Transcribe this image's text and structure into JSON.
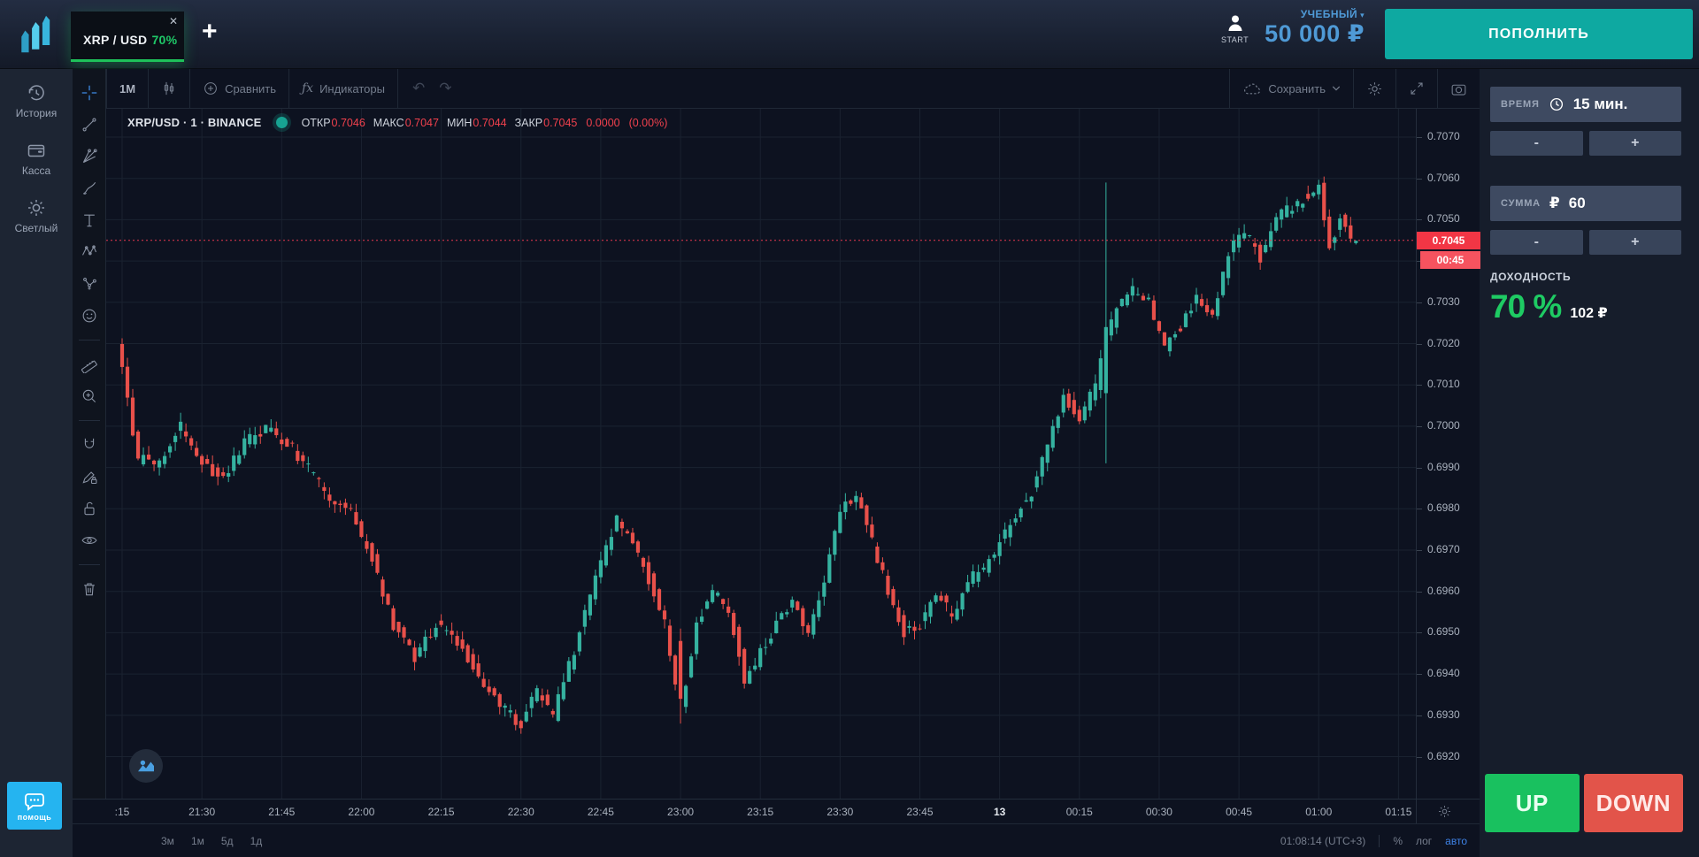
{
  "tab": {
    "symbol": "XRP / USD",
    "payout": "70%",
    "close_glyph": "✕",
    "add_glyph": "+"
  },
  "account": {
    "start_label": "START",
    "type": "УЧЕБНЫЙ",
    "caret": "▾",
    "balance": "50 000 ₽",
    "deposit_label": "ПОПОЛНИТЬ"
  },
  "sidebar": {
    "items": [
      {
        "label": "История"
      },
      {
        "label": "Касса"
      },
      {
        "label": "Светлый"
      }
    ],
    "help_label": "помощь"
  },
  "chart_toolbar": {
    "interval": "1М",
    "compare": "Сравнить",
    "indicators": "Индикаторы",
    "indicators_glyph": "ƒx",
    "undo_glyph": "↶",
    "redo_glyph": "↷",
    "save": "Сохранить"
  },
  "legend": {
    "title": "XRP/USD · 1 · BINANCE",
    "open_label": "ОТКР",
    "open": "0.7046",
    "high_label": "МАКС",
    "high": "0.7047",
    "low_label": "МИН",
    "low": "0.7044",
    "close_label": "ЗАКР",
    "close": "0.7045",
    "change": "0.0000",
    "change_pct": "(0.00%)"
  },
  "trade_panel": {
    "time_label": "ВРЕМЯ",
    "time_value": "15 мин.",
    "amount_label": "СУММА",
    "amount_currency": "₽",
    "amount_value": "60",
    "minus_glyph": "-",
    "plus_glyph": "+",
    "payout_label": "ДОХОДНОСТЬ",
    "payout_pct": "70 %",
    "payout_amount": "102 ₽",
    "up_label": "UP",
    "down_label": "DOWN"
  },
  "bottom_bar": {
    "ranges": [
      {
        "label": "3м"
      },
      {
        "label": "1м"
      },
      {
        "label": "5д"
      },
      {
        "label": "1д"
      }
    ],
    "clock": "01:08:14 (UTC+3)",
    "percent": "%",
    "log": "лог",
    "auto": "авто"
  },
  "price_scale": {
    "current_price_label": "0.7045",
    "countdown": "00:45"
  },
  "chart_data": {
    "type": "candlestick",
    "symbol": "XRP/USD",
    "exchange": "BINANCE",
    "interval_minutes": 1,
    "session_start": "21:15",
    "total_minutes": 233,
    "ohlc_last": {
      "open": 0.7046,
      "high": 0.7047,
      "low": 0.7044,
      "close": 0.7045,
      "change": 0.0,
      "change_pct": 0.0
    },
    "current_price": 0.7045,
    "countdown": "00:45",
    "y_axis": {
      "ticks": [
        0.707,
        0.706,
        0.705,
        0.704,
        0.703,
        0.702,
        0.701,
        0.7,
        0.699,
        0.698,
        0.697,
        0.696,
        0.695,
        0.694,
        0.693,
        0.692
      ],
      "range": [
        0.6915,
        0.7077
      ]
    },
    "x_axis": {
      "ticks": [
        {
          "label": ":15",
          "minute": 0
        },
        {
          "label": "21:30",
          "minute": 15
        },
        {
          "label": "21:45",
          "minute": 30
        },
        {
          "label": "22:00",
          "minute": 45
        },
        {
          "label": "22:15",
          "minute": 60
        },
        {
          "label": "22:30",
          "minute": 75
        },
        {
          "label": "22:45",
          "minute": 90
        },
        {
          "label": "23:00",
          "minute": 105
        },
        {
          "label": "23:15",
          "minute": 120
        },
        {
          "label": "23:30",
          "minute": 135
        },
        {
          "label": "23:45",
          "minute": 150
        },
        {
          "label": "13",
          "minute": 165,
          "day_marker": true
        },
        {
          "label": "00:15",
          "minute": 180
        },
        {
          "label": "00:30",
          "minute": 195
        },
        {
          "label": "00:45",
          "minute": 210
        },
        {
          "label": "01:00",
          "minute": 225
        },
        {
          "label": "01:15",
          "minute": 240
        }
      ]
    },
    "waypoints": [
      [
        0,
        0.7021
      ],
      [
        2,
        0.7006
      ],
      [
        4,
        0.6992
      ],
      [
        8,
        0.6991
      ],
      [
        12,
        0.7
      ],
      [
        16,
        0.6991
      ],
      [
        20,
        0.6987
      ],
      [
        24,
        0.6996
      ],
      [
        28,
        0.6999
      ],
      [
        32,
        0.6996
      ],
      [
        36,
        0.699
      ],
      [
        40,
        0.6983
      ],
      [
        44,
        0.6979
      ],
      [
        48,
        0.6968
      ],
      [
        52,
        0.6952
      ],
      [
        56,
        0.6944
      ],
      [
        60,
        0.6952
      ],
      [
        64,
        0.6948
      ],
      [
        68,
        0.694
      ],
      [
        72,
        0.6932
      ],
      [
        76,
        0.6928
      ],
      [
        79,
        0.6936
      ],
      [
        82,
        0.693
      ],
      [
        86,
        0.6946
      ],
      [
        90,
        0.6964
      ],
      [
        94,
        0.6977
      ],
      [
        97,
        0.6972
      ],
      [
        100,
        0.6963
      ],
      [
        103,
        0.6952
      ],
      [
        106,
        0.6931
      ],
      [
        109,
        0.6952
      ],
      [
        112,
        0.696
      ],
      [
        115,
        0.6956
      ],
      [
        118,
        0.6939
      ],
      [
        121,
        0.6945
      ],
      [
        124,
        0.6952
      ],
      [
        127,
        0.6957
      ],
      [
        130,
        0.695
      ],
      [
        133,
        0.6963
      ],
      [
        136,
        0.6979
      ],
      [
        139,
        0.6984
      ],
      [
        142,
        0.6972
      ],
      [
        145,
        0.696
      ],
      [
        148,
        0.695
      ],
      [
        151,
        0.6952
      ],
      [
        154,
        0.696
      ],
      [
        157,
        0.6954
      ],
      [
        160,
        0.6963
      ],
      [
        163,
        0.6965
      ],
      [
        166,
        0.6972
      ],
      [
        169,
        0.6979
      ],
      [
        172,
        0.6984
      ],
      [
        175,
        0.6995
      ],
      [
        178,
        0.7008
      ],
      [
        181,
        0.7001
      ],
      [
        184,
        0.701
      ],
      [
        186,
        0.7022
      ],
      [
        188,
        0.7028
      ],
      [
        191,
        0.7033
      ],
      [
        194,
        0.703
      ],
      [
        197,
        0.7019
      ],
      [
        200,
        0.7024
      ],
      [
        203,
        0.7032
      ],
      [
        206,
        0.7026
      ],
      [
        209,
        0.7042
      ],
      [
        212,
        0.7047
      ],
      [
        215,
        0.7041
      ],
      [
        218,
        0.7051
      ],
      [
        221,
        0.7053
      ],
      [
        224,
        0.7056
      ],
      [
        226,
        0.7058
      ],
      [
        228,
        0.7044
      ],
      [
        230,
        0.705
      ],
      [
        232,
        0.7045
      ]
    ],
    "overrides": [
      {
        "minute": 105,
        "open": 0.6948,
        "close": 0.6934,
        "high": 0.6951,
        "low": 0.6928
      },
      {
        "minute": 185,
        "open": 0.7008,
        "close": 0.7024,
        "high": 0.7059,
        "low": 0.6991
      }
    ],
    "colors": {
      "up": "#35b2a0",
      "down": "#e8504a",
      "grid": "#1a2230",
      "price_line": "#e8384f",
      "price_label_bg": "#f23645",
      "countdown_bg": "#f6535f",
      "accent_green": "#1ec15a",
      "accent_red": "#e2544a",
      "accent_blue": "#4f9ad6",
      "accent_teal": "#0ea9a1"
    }
  }
}
